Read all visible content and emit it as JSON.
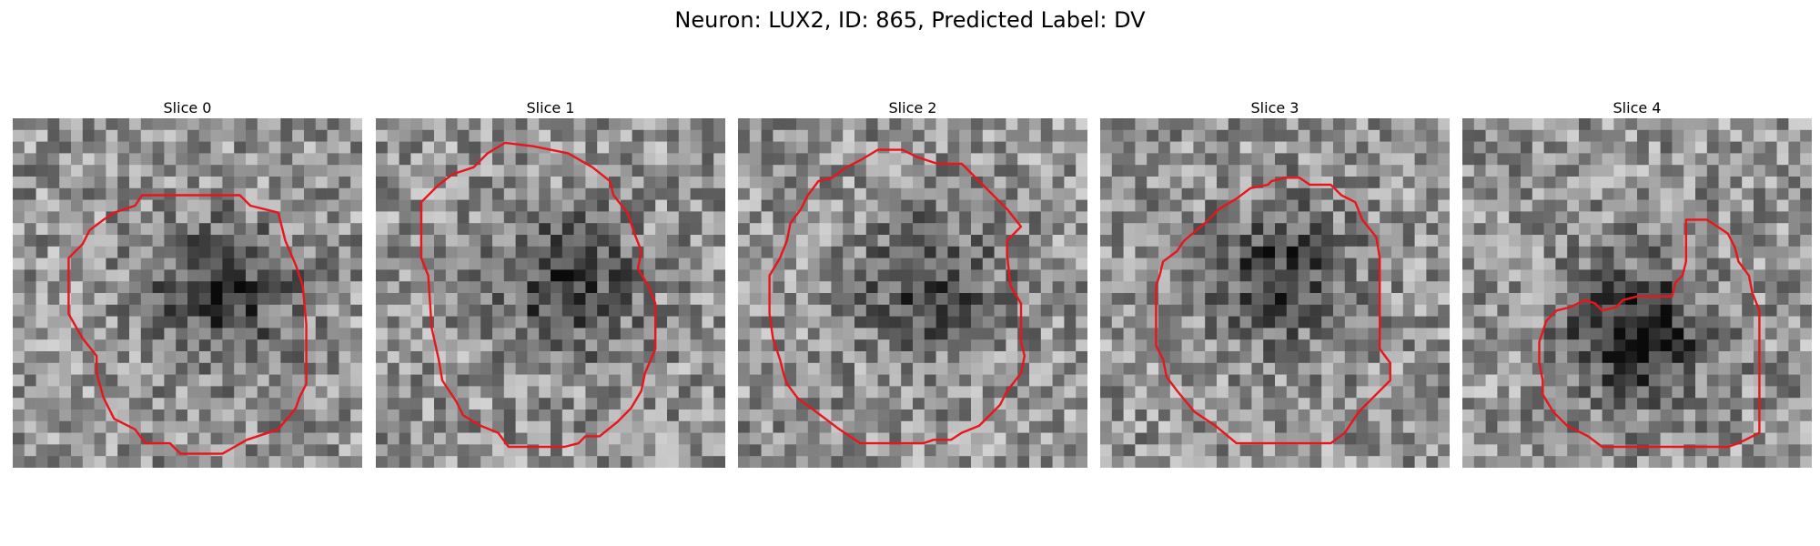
{
  "title": "Neuron: LUX2, ID: 865, Predicted Label: DV",
  "contour_color": "#e8161b",
  "slices": [
    {
      "label": "Slice 0",
      "seed": 11,
      "dark_center": [
        0.6,
        0.5
      ],
      "darkness": 0.55,
      "contour": [
        [
          0.37,
          0.22
        ],
        [
          0.65,
          0.22
        ],
        [
          0.68,
          0.25
        ],
        [
          0.76,
          0.27
        ],
        [
          0.78,
          0.35
        ],
        [
          0.81,
          0.42
        ],
        [
          0.83,
          0.48
        ],
        [
          0.84,
          0.59
        ],
        [
          0.84,
          0.76
        ],
        [
          0.82,
          0.8
        ],
        [
          0.81,
          0.83
        ],
        [
          0.76,
          0.89
        ],
        [
          0.67,
          0.92
        ],
        [
          0.6,
          0.96
        ],
        [
          0.48,
          0.96
        ],
        [
          0.45,
          0.93
        ],
        [
          0.38,
          0.93
        ],
        [
          0.35,
          0.89
        ],
        [
          0.29,
          0.86
        ],
        [
          0.26,
          0.8
        ],
        [
          0.24,
          0.73
        ],
        [
          0.24,
          0.68
        ],
        [
          0.2,
          0.63
        ],
        [
          0.16,
          0.56
        ],
        [
          0.16,
          0.4
        ],
        [
          0.2,
          0.36
        ],
        [
          0.22,
          0.32
        ],
        [
          0.26,
          0.29
        ],
        [
          0.29,
          0.27
        ],
        [
          0.35,
          0.25
        ]
      ]
    },
    {
      "label": "Slice 1",
      "seed": 23,
      "dark_center": [
        0.55,
        0.48
      ],
      "darkness": 0.5,
      "contour": [
        [
          0.28,
          0.14
        ],
        [
          0.32,
          0.1
        ],
        [
          0.37,
          0.07
        ],
        [
          0.45,
          0.08
        ],
        [
          0.55,
          0.1
        ],
        [
          0.62,
          0.14
        ],
        [
          0.67,
          0.18
        ],
        [
          0.68,
          0.22
        ],
        [
          0.72,
          0.27
        ],
        [
          0.74,
          0.33
        ],
        [
          0.76,
          0.38
        ],
        [
          0.75,
          0.43
        ],
        [
          0.78,
          0.48
        ],
        [
          0.8,
          0.53
        ],
        [
          0.8,
          0.66
        ],
        [
          0.77,
          0.73
        ],
        [
          0.76,
          0.78
        ],
        [
          0.73,
          0.83
        ],
        [
          0.69,
          0.87
        ],
        [
          0.64,
          0.91
        ],
        [
          0.6,
          0.91
        ],
        [
          0.58,
          0.93
        ],
        [
          0.54,
          0.94
        ],
        [
          0.48,
          0.94
        ],
        [
          0.42,
          0.94
        ],
        [
          0.38,
          0.94
        ],
        [
          0.35,
          0.9
        ],
        [
          0.3,
          0.88
        ],
        [
          0.25,
          0.85
        ],
        [
          0.23,
          0.81
        ],
        [
          0.19,
          0.75
        ],
        [
          0.18,
          0.69
        ],
        [
          0.16,
          0.6
        ],
        [
          0.15,
          0.45
        ],
        [
          0.13,
          0.4
        ],
        [
          0.13,
          0.24
        ],
        [
          0.18,
          0.19
        ],
        [
          0.22,
          0.16
        ]
      ]
    },
    {
      "label": "Slice 2",
      "seed": 37,
      "dark_center": [
        0.55,
        0.48
      ],
      "darkness": 0.45,
      "contour": [
        [
          0.23,
          0.18
        ],
        [
          0.27,
          0.17
        ],
        [
          0.31,
          0.14
        ],
        [
          0.35,
          0.12
        ],
        [
          0.4,
          0.09
        ],
        [
          0.47,
          0.09
        ],
        [
          0.51,
          0.11
        ],
        [
          0.57,
          0.13
        ],
        [
          0.64,
          0.13
        ],
        [
          0.69,
          0.18
        ],
        [
          0.74,
          0.23
        ],
        [
          0.77,
          0.26
        ],
        [
          0.81,
          0.31
        ],
        [
          0.77,
          0.35
        ],
        [
          0.77,
          0.39
        ],
        [
          0.78,
          0.48
        ],
        [
          0.81,
          0.53
        ],
        [
          0.81,
          0.64
        ],
        [
          0.82,
          0.68
        ],
        [
          0.81,
          0.73
        ],
        [
          0.77,
          0.78
        ],
        [
          0.75,
          0.82
        ],
        [
          0.72,
          0.85
        ],
        [
          0.69,
          0.88
        ],
        [
          0.64,
          0.9
        ],
        [
          0.61,
          0.92
        ],
        [
          0.56,
          0.92
        ],
        [
          0.53,
          0.93
        ],
        [
          0.35,
          0.93
        ],
        [
          0.29,
          0.89
        ],
        [
          0.25,
          0.86
        ],
        [
          0.17,
          0.8
        ],
        [
          0.14,
          0.76
        ],
        [
          0.13,
          0.73
        ],
        [
          0.12,
          0.69
        ],
        [
          0.1,
          0.63
        ],
        [
          0.09,
          0.56
        ],
        [
          0.09,
          0.45
        ],
        [
          0.12,
          0.4
        ],
        [
          0.14,
          0.35
        ],
        [
          0.15,
          0.3
        ],
        [
          0.18,
          0.26
        ],
        [
          0.2,
          0.22
        ]
      ]
    },
    {
      "label": "Slice 3",
      "seed": 53,
      "dark_center": [
        0.52,
        0.44
      ],
      "darkness": 0.5,
      "contour": [
        [
          0.3,
          0.3
        ],
        [
          0.34,
          0.26
        ],
        [
          0.39,
          0.23
        ],
        [
          0.43,
          0.2
        ],
        [
          0.48,
          0.19
        ],
        [
          0.49,
          0.18
        ],
        [
          0.53,
          0.17
        ],
        [
          0.57,
          0.17
        ],
        [
          0.6,
          0.19
        ],
        [
          0.66,
          0.19
        ],
        [
          0.69,
          0.22
        ],
        [
          0.73,
          0.24
        ],
        [
          0.75,
          0.29
        ],
        [
          0.79,
          0.34
        ],
        [
          0.8,
          0.4
        ],
        [
          0.8,
          0.48
        ],
        [
          0.8,
          0.56
        ],
        [
          0.8,
          0.66
        ],
        [
          0.83,
          0.7
        ],
        [
          0.83,
          0.75
        ],
        [
          0.78,
          0.8
        ],
        [
          0.74,
          0.84
        ],
        [
          0.7,
          0.9
        ],
        [
          0.66,
          0.93
        ],
        [
          0.46,
          0.93
        ],
        [
          0.39,
          0.93
        ],
        [
          0.33,
          0.88
        ],
        [
          0.27,
          0.84
        ],
        [
          0.22,
          0.78
        ],
        [
          0.19,
          0.74
        ],
        [
          0.18,
          0.69
        ],
        [
          0.16,
          0.65
        ],
        [
          0.16,
          0.56
        ],
        [
          0.16,
          0.48
        ],
        [
          0.17,
          0.45
        ],
        [
          0.18,
          0.41
        ],
        [
          0.22,
          0.38
        ],
        [
          0.24,
          0.35
        ]
      ]
    },
    {
      "label": "Slice 4",
      "seed": 71,
      "dark_center": [
        0.5,
        0.62
      ],
      "darkness": 0.7,
      "contour": [
        [
          0.65,
          0.29
        ],
        [
          0.7,
          0.29
        ],
        [
          0.76,
          0.33
        ],
        [
          0.78,
          0.37
        ],
        [
          0.79,
          0.41
        ],
        [
          0.82,
          0.45
        ],
        [
          0.83,
          0.5
        ],
        [
          0.85,
          0.55
        ],
        [
          0.85,
          0.63
        ],
        [
          0.85,
          0.72
        ],
        [
          0.85,
          0.82
        ],
        [
          0.85,
          0.9
        ],
        [
          0.81,
          0.92
        ],
        [
          0.79,
          0.93
        ],
        [
          0.76,
          0.94
        ],
        [
          0.4,
          0.94
        ],
        [
          0.36,
          0.91
        ],
        [
          0.3,
          0.88
        ],
        [
          0.26,
          0.84
        ],
        [
          0.23,
          0.79
        ],
        [
          0.23,
          0.75
        ],
        [
          0.22,
          0.7
        ],
        [
          0.22,
          0.64
        ],
        [
          0.24,
          0.58
        ],
        [
          0.27,
          0.55
        ],
        [
          0.31,
          0.54
        ],
        [
          0.35,
          0.52
        ],
        [
          0.38,
          0.53
        ],
        [
          0.4,
          0.55
        ],
        [
          0.44,
          0.54
        ],
        [
          0.46,
          0.52
        ],
        [
          0.5,
          0.51
        ],
        [
          0.6,
          0.51
        ],
        [
          0.61,
          0.47
        ],
        [
          0.63,
          0.45
        ],
        [
          0.64,
          0.41
        ],
        [
          0.64,
          0.34
        ],
        [
          0.64,
          0.29
        ]
      ]
    }
  ]
}
